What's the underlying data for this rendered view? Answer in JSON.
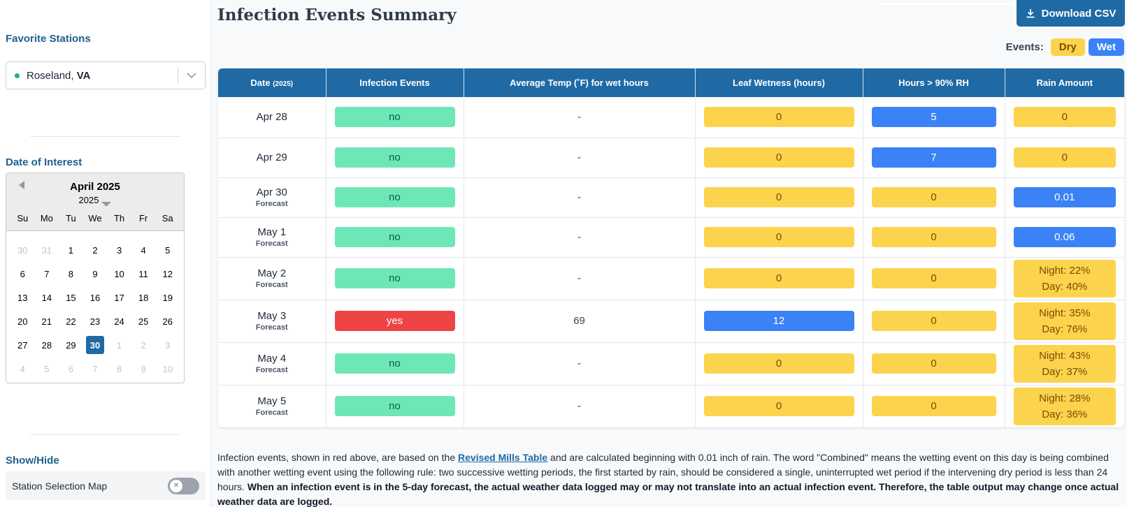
{
  "sidebar": {
    "favorite_stations_heading": "Favorite Stations",
    "station_city": "Roseland,",
    "station_state": "VA",
    "date_of_interest_heading": "Date of Interest",
    "calendar": {
      "month_label": "April 2025",
      "year_label": "2025",
      "weekdays": [
        "Su",
        "Mo",
        "Tu",
        "We",
        "Th",
        "Fr",
        "Sa"
      ],
      "days": [
        [
          "30",
          "31",
          "1",
          "2",
          "3",
          "4",
          "5"
        ],
        [
          "6",
          "7",
          "8",
          "9",
          "10",
          "11",
          "12"
        ],
        [
          "13",
          "14",
          "15",
          "16",
          "17",
          "18",
          "19"
        ],
        [
          "20",
          "21",
          "22",
          "23",
          "24",
          "25",
          "26"
        ],
        [
          "27",
          "28",
          "29",
          "30",
          "1",
          "2",
          "3"
        ],
        [
          "4",
          "5",
          "6",
          "7",
          "8",
          "9",
          "10"
        ]
      ],
      "selected_day": "30"
    },
    "show_hide_heading": "Show/Hide",
    "station_map_toggle_label": "Station Selection Map"
  },
  "main": {
    "title": "Infection Events Summary",
    "download_label": "Download CSV",
    "legend": {
      "label": "Events:",
      "dry": "Dry",
      "wet": "Wet"
    },
    "colors": {
      "primary": "#1f6aa5",
      "dry": "#fcd34d",
      "wet": "#3b82f6",
      "no": "#6ee7b7",
      "yes": "#ef4444"
    },
    "table": {
      "headers": {
        "date": "Date",
        "date_year": "(2025)",
        "infection": "Infection Events",
        "avg_temp": "Average Temp (˚F) for wet hours",
        "leaf_wetness": "Leaf Wetness (hours)",
        "rh_hours": "Hours > 90% RH",
        "rain": "Rain Amount"
      },
      "rows": [
        {
          "date": "Apr 28",
          "sub": "",
          "infection": "no",
          "temp": "-",
          "leaf": "0",
          "leaf_type": "dry",
          "rh": "5",
          "rh_type": "wet",
          "rain": "0",
          "rain_type": "dry"
        },
        {
          "date": "Apr 29",
          "sub": "",
          "infection": "no",
          "temp": "-",
          "leaf": "0",
          "leaf_type": "dry",
          "rh": "7",
          "rh_type": "wet",
          "rain": "0",
          "rain_type": "dry"
        },
        {
          "date": "Apr 30",
          "sub": "Forecast",
          "infection": "no",
          "temp": "-",
          "leaf": "0",
          "leaf_type": "dry",
          "rh": "0",
          "rh_type": "dry",
          "rain": "0.01",
          "rain_type": "wet"
        },
        {
          "date": "May 1",
          "sub": "Forecast",
          "infection": "no",
          "temp": "-",
          "leaf": "0",
          "leaf_type": "dry",
          "rh": "0",
          "rh_type": "dry",
          "rain": "0.06",
          "rain_type": "wet"
        },
        {
          "date": "May 2",
          "sub": "Forecast",
          "infection": "no",
          "temp": "-",
          "leaf": "0",
          "leaf_type": "dry",
          "rh": "0",
          "rh_type": "dry",
          "rain_night": "Night: 22%",
          "rain_day": "Day: 40%",
          "rain_type": "dry"
        },
        {
          "date": "May 3",
          "sub": "Forecast",
          "infection": "yes",
          "temp": "69",
          "leaf": "12",
          "leaf_type": "wet",
          "rh": "0",
          "rh_type": "dry",
          "rain_night": "Night: 35%",
          "rain_day": "Day: 76%",
          "rain_type": "dry"
        },
        {
          "date": "May 4",
          "sub": "Forecast",
          "infection": "no",
          "temp": "-",
          "leaf": "0",
          "leaf_type": "dry",
          "rh": "0",
          "rh_type": "dry",
          "rain_night": "Night: 43%",
          "rain_day": "Day: 37%",
          "rain_type": "dry"
        },
        {
          "date": "May 5",
          "sub": "Forecast",
          "infection": "no",
          "temp": "-",
          "leaf": "0",
          "leaf_type": "dry",
          "rh": "0",
          "rh_type": "dry",
          "rain_night": "Night: 28%",
          "rain_day": "Day: 36%",
          "rain_type": "dry"
        }
      ]
    },
    "footnote": {
      "part1": "Infection events, shown in red above, are based on the ",
      "link": "Revised Mills Table",
      "part2": " and are calculated beginning with 0.01 inch of rain. The word \"Combined\" means the wetting event on this day is being combined with another wetting event using the following rule: two successive wetting periods, the first started by rain, should be considered a single, uninterrupted wet period if the intervening dry period is less than 24 hours. ",
      "bold": "When an infection event is in the 5-day forecast, the actual weather data logged may or may not translate into an actual infection event. Therefore, the table output may change once actual weather data are logged."
    }
  }
}
